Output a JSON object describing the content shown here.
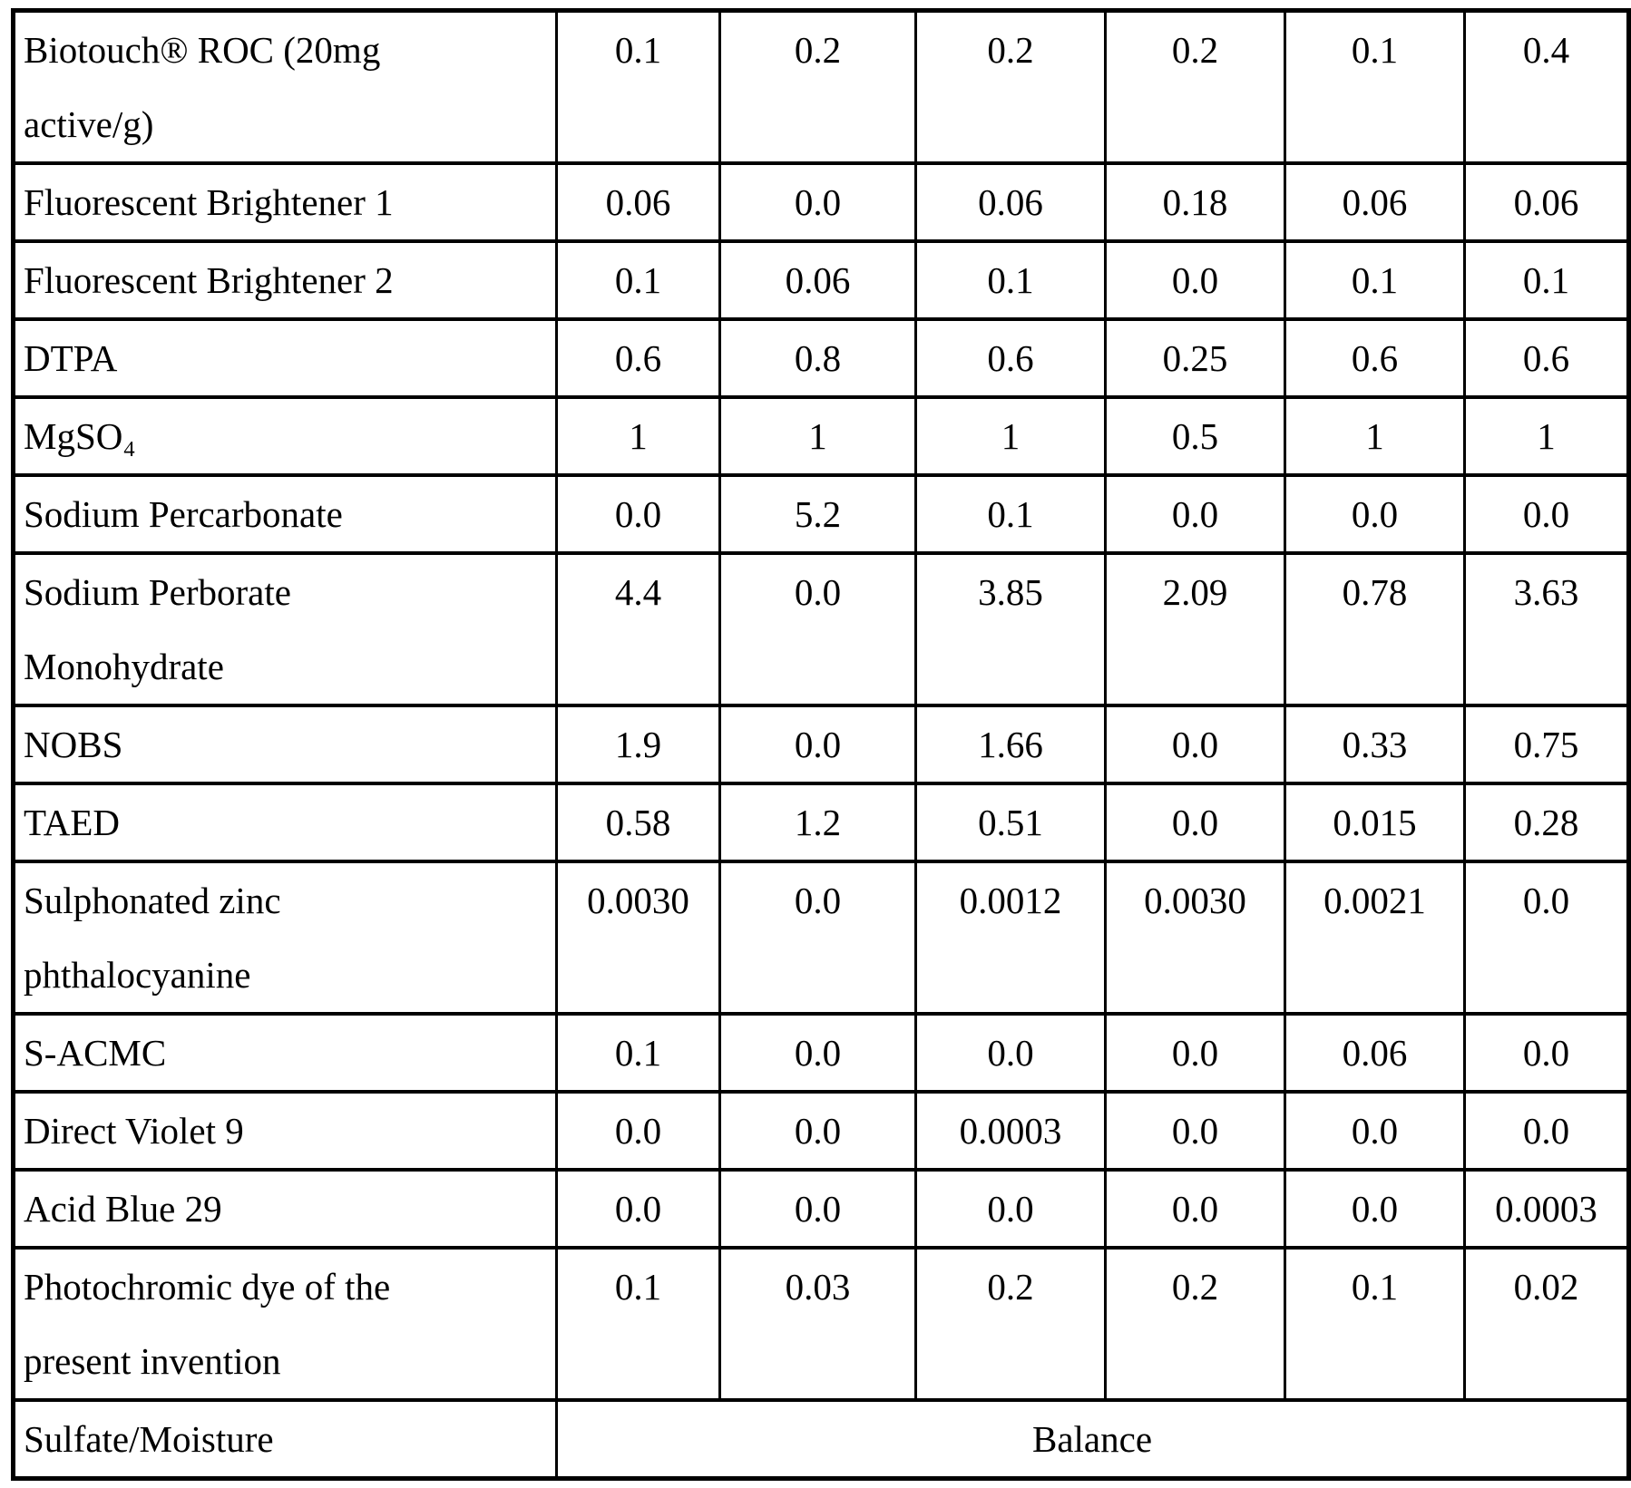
{
  "table": {
    "num_value_columns": 6,
    "border_color": "#000000",
    "rows": [
      {
        "label": "Biotouch® ROC (20mg\nactive/g)",
        "values": [
          "0.1",
          "0.2",
          "0.2",
          "0.2",
          "0.1",
          "0.4"
        ]
      },
      {
        "label": "Fluorescent Brightener 1",
        "values": [
          "0.06",
          "0.0",
          "0.06",
          "0.18",
          "0.06",
          "0.06"
        ]
      },
      {
        "label": "Fluorescent Brightener 2",
        "values": [
          "0.1",
          "0.06",
          "0.1",
          "0.0",
          "0.1",
          "0.1"
        ]
      },
      {
        "label": "DTPA",
        "values": [
          "0.6",
          "0.8",
          "0.6",
          "0.25",
          "0.6",
          "0.6"
        ]
      },
      {
        "label": "MgSO₄",
        "values": [
          "1",
          "1",
          "1",
          "0.5",
          "1",
          "1"
        ]
      },
      {
        "label": "Sodium Percarbonate",
        "values": [
          "0.0",
          "5.2",
          "0.1",
          "0.0",
          "0.0",
          "0.0"
        ]
      },
      {
        "label": "Sodium Perborate\nMonohydrate",
        "values": [
          "4.4",
          "0.0",
          "3.85",
          "2.09",
          "0.78",
          "3.63"
        ]
      },
      {
        "label": "NOBS",
        "values": [
          "1.9",
          "0.0",
          "1.66",
          "0.0",
          "0.33",
          "0.75"
        ]
      },
      {
        "label": "TAED",
        "values": [
          "0.58",
          "1.2",
          "0.51",
          "0.0",
          "0.015",
          "0.28"
        ]
      },
      {
        "label": "Sulphonated zinc\nphthalocyanine",
        "values": [
          "0.0030",
          "0.0",
          "0.0012",
          "0.0030",
          "0.0021",
          "0.0"
        ]
      },
      {
        "label": "S-ACMC",
        "values": [
          "0.1",
          "0.0",
          "0.0",
          "0.0",
          "0.06",
          "0.0"
        ]
      },
      {
        "label": "Direct Violet 9",
        "values": [
          "0.0",
          "0.0",
          "0.0003",
          "0.0",
          "0.0",
          "0.0"
        ]
      },
      {
        "label": "Acid Blue 29",
        "values": [
          "0.0",
          "0.0",
          "0.0",
          "0.0",
          "0.0",
          "0.0003"
        ]
      },
      {
        "label": "Photochromic dye of the\npresent invention",
        "values": [
          "0.1",
          "0.03",
          "0.2",
          "0.2",
          "0.1",
          "0.02"
        ]
      },
      {
        "label": "Sulfate/Moisture",
        "span_value": "Balance"
      }
    ]
  }
}
